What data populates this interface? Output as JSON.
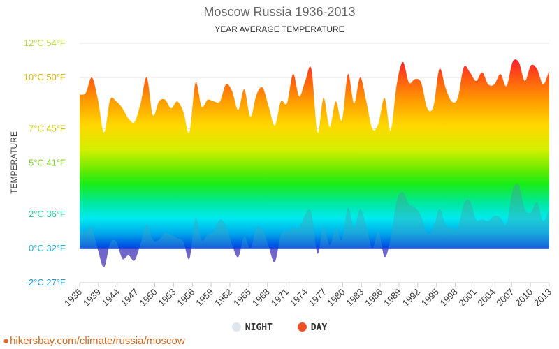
{
  "chart_data": {
    "type": "area",
    "title": "Moscow Russia 1936-2013",
    "subtitle": "YEAR AVERAGE TEMPERATURE",
    "ylabel": "TEMPERATURE",
    "ylim": [
      -2,
      12
    ],
    "y_ticks": [
      {
        "value": 12,
        "label": "12°C 54°F",
        "color": "#b9de3a"
      },
      {
        "value": 10,
        "label": "10°C 50°F",
        "color": "#d9b400"
      },
      {
        "value": 7,
        "label": "7°C 45°F",
        "color": "#c9c400"
      },
      {
        "value": 5,
        "label": "5°C 41°F",
        "color": "#7ed321"
      },
      {
        "value": 2,
        "label": "2°C 36°F",
        "color": "#20c8a0"
      },
      {
        "value": 0,
        "label": "0°C 32°F",
        "color": "#1ab2d8"
      },
      {
        "value": -2,
        "label": "-2°C 27°F",
        "color": "#1a9ad8"
      }
    ],
    "x_tick_labels": [
      "1936",
      "1939",
      "1944",
      "1947",
      "1950",
      "1953",
      "1956",
      "1959",
      "1962",
      "1965",
      "1968",
      "1971",
      "1974",
      "1977",
      "1980",
      "1983",
      "1986",
      "1989",
      "1992",
      "1995",
      "1998",
      "2001",
      "2004",
      "2007",
      "2010",
      "2013"
    ],
    "x": [
      "1936",
      "1937",
      "1938",
      "1939",
      "1940",
      "1941",
      "1942",
      "1943",
      "1944",
      "1945",
      "1946",
      "1947",
      "1948",
      "1949",
      "1950",
      "1951",
      "1952",
      "1953",
      "1954",
      "1955",
      "1956",
      "1957",
      "1958",
      "1959",
      "1960",
      "1961",
      "1962",
      "1963",
      "1964",
      "1965",
      "1966",
      "1967",
      "1968",
      "1969",
      "1970",
      "1971",
      "1972",
      "1973",
      "1974",
      "1975",
      "1976",
      "1977",
      "1978",
      "1979",
      "1980",
      "1981",
      "1982",
      "1983",
      "1984",
      "1985",
      "1986",
      "1987",
      "1988",
      "1989",
      "1990",
      "1991",
      "1992",
      "1993",
      "1994",
      "1995",
      "1996",
      "1997",
      "1998",
      "1999",
      "2000",
      "2001",
      "2002",
      "2003",
      "2004",
      "2005",
      "2006",
      "2007",
      "2008",
      "2009",
      "2010",
      "2011",
      "2012",
      "2013"
    ],
    "series": [
      {
        "name": "DAY",
        "color": "#f04e23",
        "values": [
          9.0,
          9.1,
          10.0,
          8.7,
          6.8,
          8.7,
          8.6,
          8.2,
          7.6,
          7.4,
          8.5,
          10.0,
          7.8,
          8.6,
          8.7,
          8.2,
          8.6,
          8.0,
          6.8,
          9.7,
          8.3,
          8.7,
          8.6,
          8.6,
          9.6,
          9.2,
          8.1,
          9.3,
          7.7,
          9.0,
          9.4,
          8.3,
          7.2,
          8.6,
          8.5,
          10.2,
          8.9,
          9.8,
          10.5,
          6.8,
          8.8,
          7.1,
          8.6,
          7.5,
          10.2,
          8.5,
          10.0,
          8.6,
          7.0,
          7.3,
          8.8,
          6.9,
          9.6,
          10.9,
          9.7,
          9.9,
          9.7,
          8.2,
          8.3,
          10.5,
          9.4,
          8.6,
          8.8,
          10.6,
          10.3,
          9.8,
          10.3,
          9.6,
          9.6,
          10.2,
          9.5,
          10.9,
          10.9,
          9.8,
          10.7,
          10.5,
          9.6,
          10.4
        ]
      },
      {
        "name": "NIGHT",
        "color": "#dfe6ef",
        "values": [
          1.0,
          1.0,
          1.2,
          -0.1,
          -1.1,
          0.3,
          0.4,
          -0.6,
          -0.4,
          -0.7,
          0.3,
          1.4,
          0.5,
          0.5,
          0.9,
          0.8,
          0.6,
          0.4,
          -0.6,
          1.8,
          0.5,
          0.8,
          1.0,
          1.7,
          1.3,
          0.2,
          -0.5,
          0.7,
          0.0,
          1.2,
          1.1,
          0.1,
          -0.8,
          0.8,
          1.0,
          1.2,
          1.2,
          2.0,
          2.1,
          -0.3,
          1.3,
          0.2,
          1.2,
          0.5,
          2.4,
          1.2,
          2.3,
          1.3,
          0.0,
          1.0,
          -0.5,
          0.6,
          2.8,
          3.3,
          2.6,
          2.4,
          1.9,
          0.9,
          1.2,
          2.3,
          1.4,
          1.2,
          1.2,
          2.6,
          2.8,
          1.7,
          1.7,
          1.6,
          1.9,
          1.8,
          1.4,
          3.4,
          3.7,
          2.3,
          2.1,
          2.7,
          1.6,
          2.3
        ]
      }
    ],
    "grid": true,
    "legend_position": "bottom-center"
  },
  "legend": [
    {
      "label": "NIGHT",
      "color": "#dfe6ef"
    },
    {
      "label": "DAY",
      "color": "#f04e23"
    }
  ],
  "source": "hikersbay.com/climate/russia/moscow"
}
